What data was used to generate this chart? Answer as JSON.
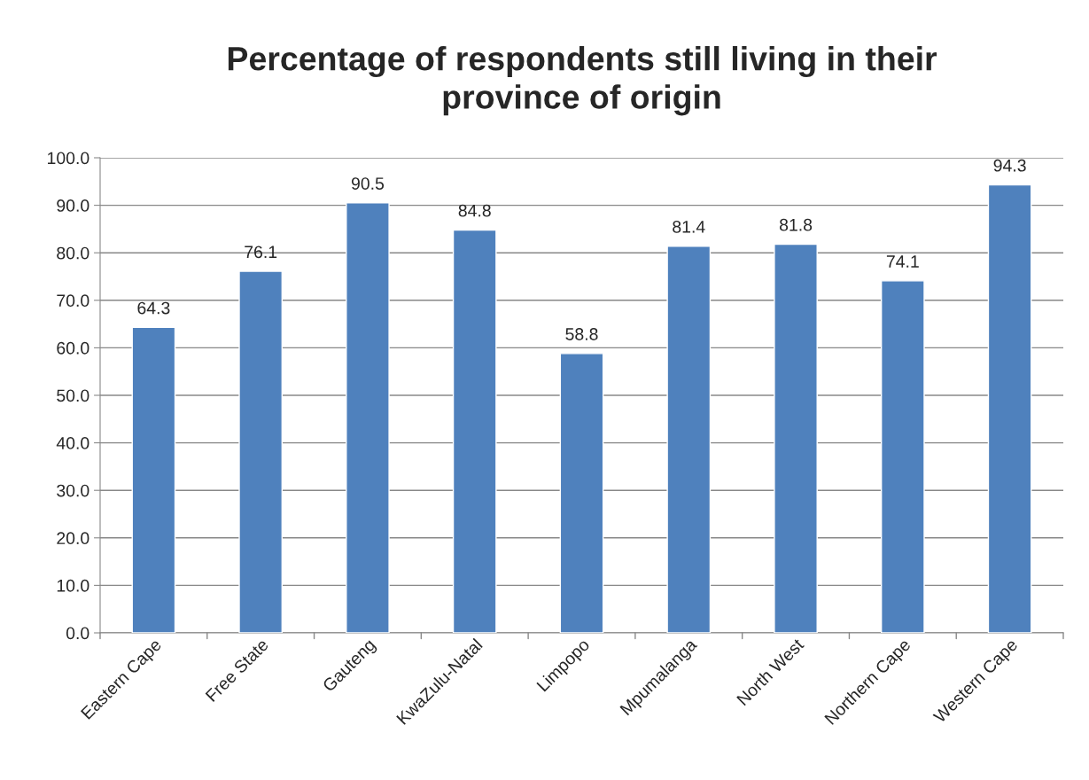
{
  "chart_data": {
    "type": "bar",
    "title": "Percentage of respondents still living in their\nprovince of origin",
    "categories": [
      "Eastern Cape",
      "Free State",
      "Gauteng",
      "KwaZulu-Natal",
      "Limpopo",
      "Mpumalanga",
      "North West",
      "Northern Cape",
      "Western Cape"
    ],
    "values": [
      64.3,
      76.1,
      90.5,
      84.8,
      58.8,
      81.4,
      81.8,
      74.1,
      94.3
    ],
    "color": "#4f81bd",
    "ylim": [
      0,
      100
    ],
    "yticks": [
      {
        "value": 0,
        "label": "0.0"
      },
      {
        "value": 10,
        "label": "10.0"
      },
      {
        "value": 20,
        "label": "20.0"
      },
      {
        "value": 30,
        "label": "30.0"
      },
      {
        "value": 40,
        "label": "40.0"
      },
      {
        "value": 50,
        "label": "50.0"
      },
      {
        "value": 60,
        "label": "60.0"
      },
      {
        "value": 70,
        "label": "70.0"
      },
      {
        "value": 80,
        "label": "80.0"
      },
      {
        "value": 90,
        "label": "90.0"
      },
      {
        "value": 100,
        "label": "100.0"
      }
    ],
    "grid": "y",
    "data_labels": true
  }
}
